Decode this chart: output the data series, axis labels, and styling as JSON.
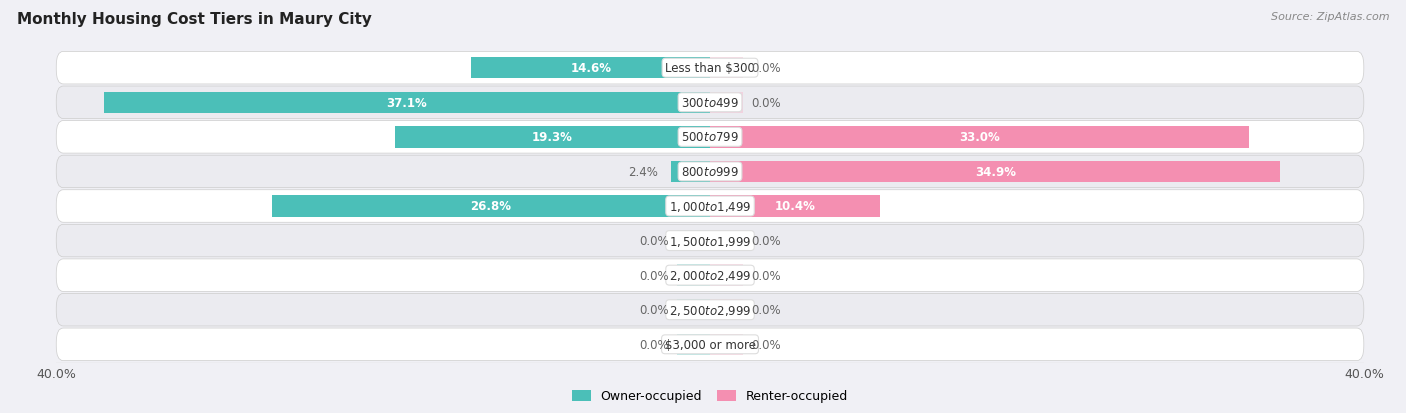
{
  "title": "Monthly Housing Cost Tiers in Maury City",
  "source": "Source: ZipAtlas.com",
  "categories": [
    "Less than $300",
    "$300 to $499",
    "$500 to $799",
    "$800 to $999",
    "$1,000 to $1,499",
    "$1,500 to $1,999",
    "$2,000 to $2,499",
    "$2,500 to $2,999",
    "$3,000 or more"
  ],
  "owner_values": [
    14.6,
    37.1,
    19.3,
    2.4,
    26.8,
    0.0,
    0.0,
    0.0,
    0.0
  ],
  "renter_values": [
    0.0,
    0.0,
    33.0,
    34.9,
    10.4,
    0.0,
    0.0,
    0.0,
    0.0
  ],
  "owner_color": "#4BBFB8",
  "renter_color": "#F48FB1",
  "owner_color_light": "#7DD4CE",
  "renter_color_light": "#F8BBD0",
  "label_color_dark": "#666666",
  "axis_max": 40.0,
  "background_color": "#f0f0f5",
  "row_colors": [
    "#ffffff",
    "#ebebf0"
  ],
  "bar_height": 0.62,
  "fig_width": 14.06,
  "fig_height": 4.14,
  "title_fontsize": 11,
  "label_fontsize": 8.5,
  "cat_fontsize": 8.5
}
